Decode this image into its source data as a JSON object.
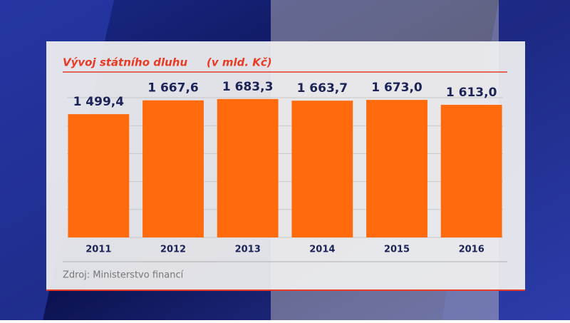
{
  "chart_data": {
    "type": "bar",
    "title": "Vývoj státního dluhu",
    "subtitle": "(v mld. Kč)",
    "source": "Zdroj: Ministerstvo financí",
    "categories": [
      "2011",
      "2012",
      "2013",
      "2014",
      "2015",
      "2016"
    ],
    "values": [
      1499.4,
      1667.6,
      1683.3,
      1663.7,
      1673.0,
      1613.0
    ],
    "value_labels": [
      "1 499,4",
      "1 667,6",
      "1 683,3",
      "1 663,7",
      "1 673,0",
      "1 613,0"
    ],
    "color": "#ff6a0d",
    "ylim": [
      0,
      1700
    ],
    "yticks": [
      340,
      680,
      1020,
      1360,
      1700
    ],
    "grid": true
  }
}
